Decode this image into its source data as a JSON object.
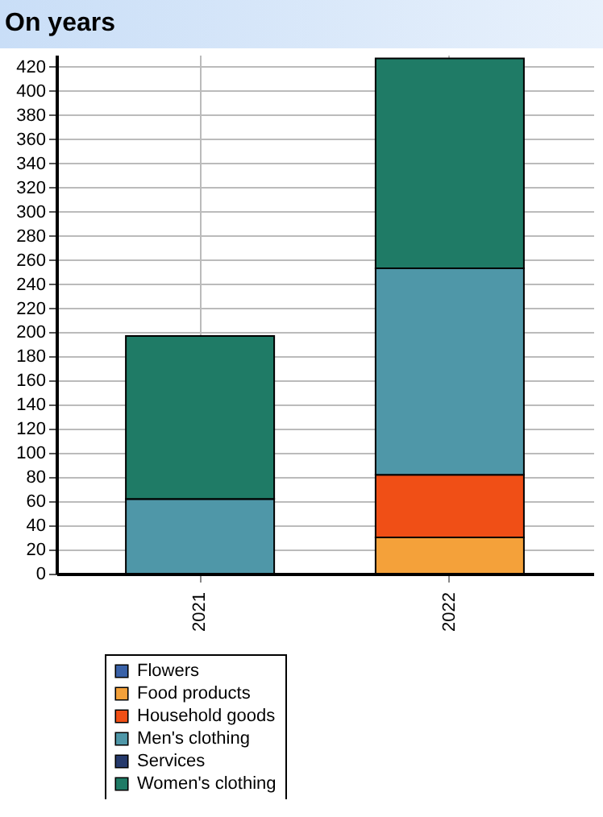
{
  "chart_data": {
    "type": "bar",
    "title": "On years",
    "categories": [
      "2021",
      "2022"
    ],
    "stacked": true,
    "ylim": [
      0,
      430
    ],
    "yticks": [
      0,
      20,
      40,
      60,
      80,
      100,
      120,
      140,
      160,
      180,
      200,
      220,
      240,
      260,
      280,
      300,
      320,
      340,
      360,
      380,
      400,
      420
    ],
    "grid": true,
    "legend": "bottom left",
    "series": [
      {
        "name": "Flowers",
        "color": "#3a62a8",
        "values": [
          0,
          0
        ]
      },
      {
        "name": "Food products",
        "color": "#f4a13a",
        "values": [
          0,
          30
        ]
      },
      {
        "name": "Household goods",
        "color": "#f04f16",
        "values": [
          0,
          52
        ]
      },
      {
        "name": "Men's clothing",
        "color": "#4f97a8",
        "values": [
          62,
          171
        ]
      },
      {
        "name": "Services",
        "color": "#263a6c",
        "values": [
          0,
          0
        ]
      },
      {
        "name": "Women's clothing",
        "color": "#1f7b66",
        "values": [
          135,
          174
        ]
      }
    ]
  }
}
